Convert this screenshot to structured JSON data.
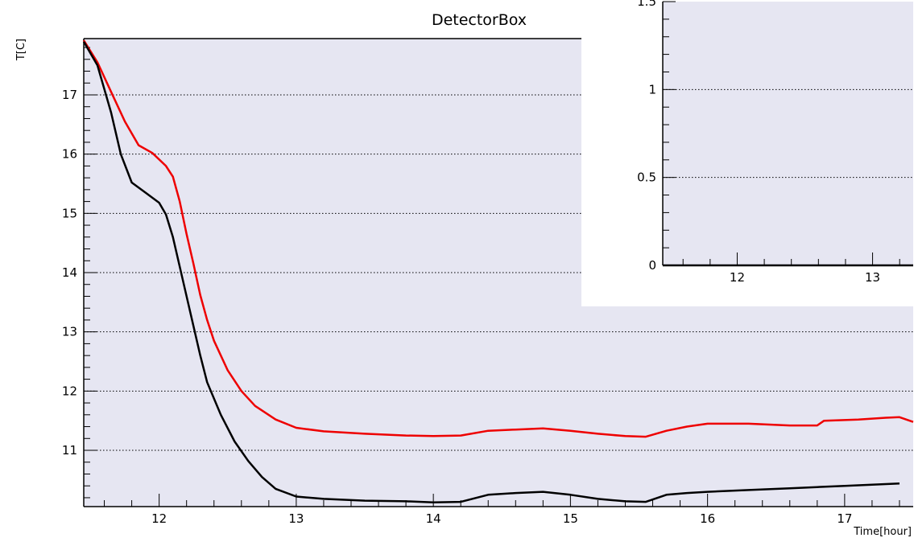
{
  "chart_data": [
    {
      "type": "line",
      "title": "DetectorBox",
      "xlabel": "Time[hour]",
      "ylabel": "T[C]",
      "xlim": [
        11.45,
        17.5
      ],
      "ylim": [
        10.05,
        17.95
      ],
      "xticks": [
        12,
        13,
        14,
        15,
        16,
        17
      ],
      "yticks": [
        11,
        12,
        13,
        14,
        15,
        16,
        17
      ],
      "grid": "horizontal dotted",
      "frame_color": "#e6e6f2",
      "series": [
        {
          "color": "#ee0000",
          "points": [
            [
              11.45,
              17.92
            ],
            [
              11.55,
              17.55
            ],
            [
              11.65,
              17.05
            ],
            [
              11.75,
              16.55
            ],
            [
              11.85,
              16.15
            ],
            [
              11.95,
              16.02
            ],
            [
              12.05,
              15.8
            ],
            [
              12.1,
              15.62
            ],
            [
              12.15,
              15.2
            ],
            [
              12.2,
              14.65
            ],
            [
              12.25,
              14.15
            ],
            [
              12.3,
              13.62
            ],
            [
              12.35,
              13.2
            ],
            [
              12.4,
              12.85
            ],
            [
              12.5,
              12.35
            ],
            [
              12.6,
              12.0
            ],
            [
              12.7,
              11.75
            ],
            [
              12.85,
              11.52
            ],
            [
              13.0,
              11.38
            ],
            [
              13.2,
              11.32
            ],
            [
              13.5,
              11.28
            ],
            [
              13.8,
              11.25
            ],
            [
              14.0,
              11.24
            ],
            [
              14.2,
              11.25
            ],
            [
              14.4,
              11.33
            ],
            [
              14.6,
              11.35
            ],
            [
              14.8,
              11.37
            ],
            [
              15.0,
              11.33
            ],
            [
              15.2,
              11.28
            ],
            [
              15.4,
              11.24
            ],
            [
              15.55,
              11.23
            ],
            [
              15.7,
              11.33
            ],
            [
              15.85,
              11.4
            ],
            [
              16.0,
              11.45
            ],
            [
              16.3,
              11.45
            ],
            [
              16.6,
              11.42
            ],
            [
              16.8,
              11.42
            ],
            [
              16.85,
              11.5
            ],
            [
              17.1,
              11.52
            ],
            [
              17.3,
              11.55
            ],
            [
              17.4,
              11.56
            ],
            [
              17.5,
              11.48
            ]
          ]
        },
        {
          "color": "#000000",
          "points": [
            [
              11.45,
              17.9
            ],
            [
              11.55,
              17.5
            ],
            [
              11.65,
              16.7
            ],
            [
              11.72,
              16.0
            ],
            [
              11.8,
              15.52
            ],
            [
              11.9,
              15.35
            ],
            [
              12.0,
              15.18
            ],
            [
              12.05,
              14.98
            ],
            [
              12.1,
              14.6
            ],
            [
              12.15,
              14.1
            ],
            [
              12.2,
              13.6
            ],
            [
              12.25,
              13.1
            ],
            [
              12.3,
              12.6
            ],
            [
              12.35,
              12.15
            ],
            [
              12.45,
              11.6
            ],
            [
              12.55,
              11.15
            ],
            [
              12.65,
              10.82
            ],
            [
              12.75,
              10.55
            ],
            [
              12.85,
              10.35
            ],
            [
              13.0,
              10.22
            ],
            [
              13.2,
              10.18
            ],
            [
              13.5,
              10.15
            ],
            [
              13.8,
              10.14
            ],
            [
              14.0,
              10.12
            ],
            [
              14.2,
              10.13
            ],
            [
              14.4,
              10.25
            ],
            [
              14.6,
              10.28
            ],
            [
              14.8,
              10.3
            ],
            [
              15.0,
              10.25
            ],
            [
              15.2,
              10.18
            ],
            [
              15.4,
              10.14
            ],
            [
              15.55,
              10.13
            ],
            [
              15.7,
              10.25
            ],
            [
              15.85,
              10.28
            ],
            [
              16.0,
              10.3
            ],
            [
              16.3,
              10.33
            ],
            [
              16.6,
              10.36
            ],
            [
              16.8,
              10.38
            ],
            [
              17.0,
              10.4
            ],
            [
              17.2,
              10.42
            ],
            [
              17.4,
              10.44
            ]
          ]
        }
      ]
    },
    {
      "type": "line",
      "title": "",
      "xlabel": "",
      "ylabel": "",
      "xlim": [
        11.45,
        13.3
      ],
      "ylim": [
        0,
        1.5
      ],
      "xticks": [
        12,
        13
      ],
      "yticks": [
        0,
        0.5,
        1,
        1.5
      ],
      "ytick_labels": [
        "0",
        "0.5",
        "1",
        "1.5"
      ],
      "grid": "horizontal dotted",
      "frame_color": "#e6e6f2",
      "series": [
        {
          "color": "#000000",
          "points": [
            [
              11.45,
              0.0
            ],
            [
              13.3,
              0.0
            ]
          ]
        }
      ]
    }
  ]
}
